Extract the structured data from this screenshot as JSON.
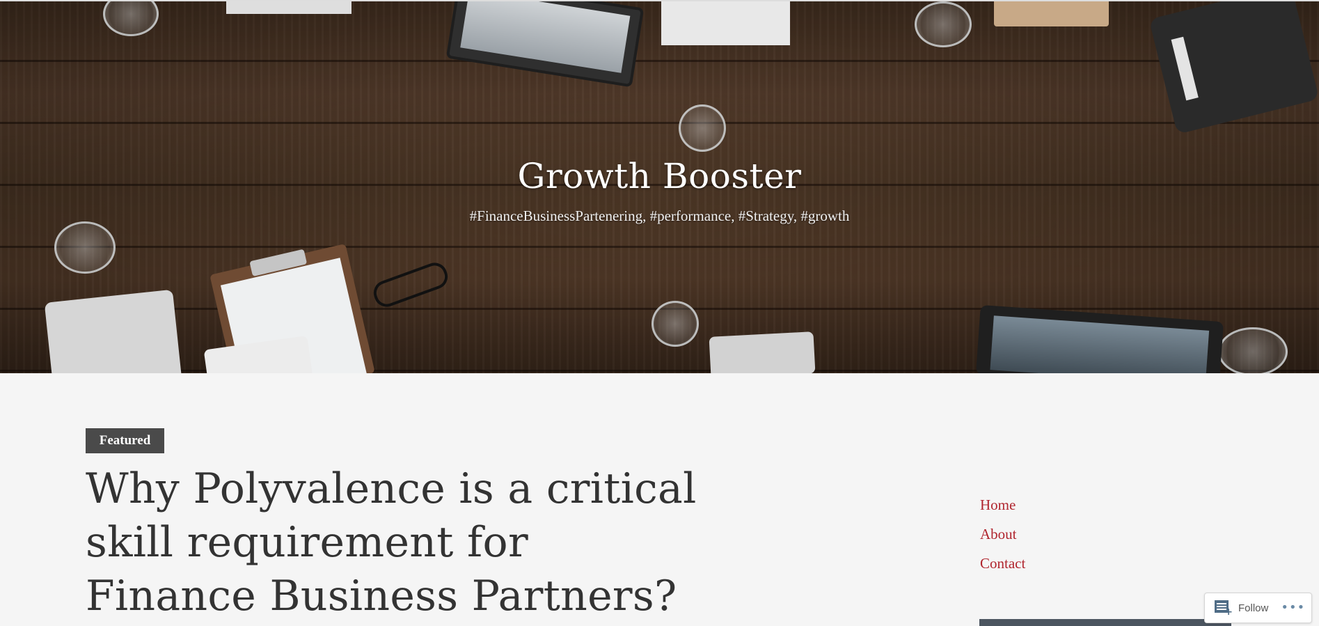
{
  "header": {
    "site_title": "Growth Booster",
    "tagline": "#FinanceBusinessPartenering, #performance, #Strategy, #growth"
  },
  "post": {
    "badge": "Featured",
    "title": "Why Polyvalence is a critical skill requirement for Finance Business Partners?"
  },
  "sidebar": {
    "menu": [
      {
        "label": "Home"
      },
      {
        "label": "About"
      },
      {
        "label": "Contact"
      }
    ]
  },
  "follow_widget": {
    "label": "Follow",
    "more_icon": "more-icon",
    "follow_icon": "reader-follow-icon"
  },
  "colors": {
    "link": "#b0252e",
    "badge_bg": "#4a4a4a",
    "title_text": "#333333",
    "page_bg": "#f5f5f5"
  }
}
